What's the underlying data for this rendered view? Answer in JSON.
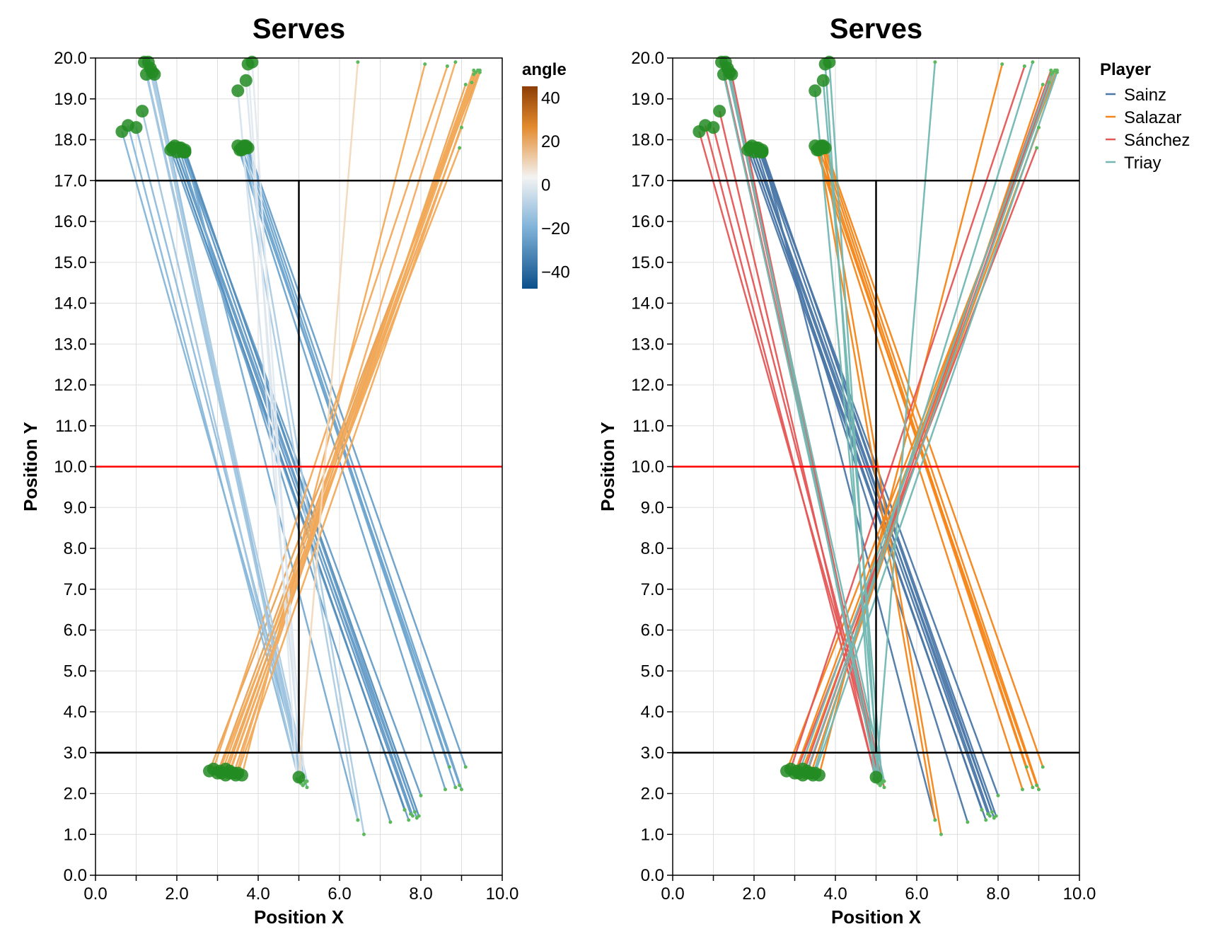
{
  "chart_data": [
    {
      "type": "line",
      "title": "Serves",
      "xlabel": "Position X",
      "ylabel": "Position Y",
      "xlim": [
        0,
        10
      ],
      "ylim": [
        0,
        20
      ],
      "x_ticks": [
        "0.0",
        "2.0",
        "4.0",
        "6.0",
        "8.0",
        "10.0"
      ],
      "y_ticks": [
        "0.0",
        "1.0",
        "2.0",
        "3.0",
        "4.0",
        "5.0",
        "6.0",
        "7.0",
        "8.0",
        "9.0",
        "10.0",
        "11.0",
        "12.0",
        "13.0",
        "14.0",
        "15.0",
        "16.0",
        "17.0",
        "18.0",
        "19.0",
        "20.0"
      ],
      "color_encoding": "angle",
      "color_legend": {
        "title": "angle",
        "ticks": [
          "40",
          "20",
          "0",
          "−20",
          "−40"
        ],
        "range": [
          -48,
          45
        ],
        "colors": {
          "low": "#0b4f8a",
          "mid": "#f3f3f3",
          "high": "#8c3e05"
        }
      },
      "court_lines": {
        "service_lines_y": [
          3,
          17
        ],
        "center_line": {
          "x": 5,
          "y_from": 3,
          "y_to": 17
        },
        "net_y": 10,
        "line_color": "#000000",
        "net_color": "#ff0000"
      }
    },
    {
      "type": "line",
      "title": "Serves",
      "xlabel": "Position X",
      "ylabel": "Position Y",
      "xlim": [
        0,
        10
      ],
      "ylim": [
        0,
        20
      ],
      "x_ticks": [
        "0.0",
        "2.0",
        "4.0",
        "6.0",
        "8.0",
        "10.0"
      ],
      "y_ticks": [
        "0.0",
        "1.0",
        "2.0",
        "3.0",
        "4.0",
        "5.0",
        "6.0",
        "7.0",
        "8.0",
        "9.0",
        "10.0",
        "11.0",
        "12.0",
        "13.0",
        "14.0",
        "15.0",
        "16.0",
        "17.0",
        "18.0",
        "19.0",
        "20.0"
      ],
      "color_encoding": "Player",
      "legend": {
        "title": "Player",
        "entries": [
          {
            "name": "Sainz",
            "color": "#4c78a8"
          },
          {
            "name": "Salazar",
            "color": "#f58518"
          },
          {
            "name": "Sánchez",
            "color": "#e45756"
          },
          {
            "name": "Triay",
            "color": "#72b7b2"
          }
        ]
      },
      "court_lines": {
        "service_lines_y": [
          3,
          17
        ],
        "center_line": {
          "x": 5,
          "y_from": 3,
          "y_to": 17
        },
        "net_y": 10,
        "line_color": "#000000",
        "net_color": "#ff0000"
      }
    }
  ],
  "point_colors": {
    "start": "#228b22",
    "end": "#5cb85c"
  },
  "serves": [
    {
      "player": "Sainz",
      "angle": -28,
      "from": [
        1.9,
        17.8
      ],
      "to": [
        7.6,
        1.6
      ]
    },
    {
      "player": "Sainz",
      "angle": -27,
      "from": [
        2.0,
        17.7
      ],
      "to": [
        7.75,
        1.5
      ]
    },
    {
      "player": "Sainz",
      "angle": -27,
      "from": [
        2.1,
        17.8
      ],
      "to": [
        7.8,
        1.45
      ]
    },
    {
      "player": "Sainz",
      "angle": -26,
      "from": [
        2.2,
        17.75
      ],
      "to": [
        7.9,
        1.4
      ]
    },
    {
      "player": "Sainz",
      "angle": -26,
      "from": [
        1.95,
        17.85
      ],
      "to": [
        7.85,
        1.55
      ]
    },
    {
      "player": "Sainz",
      "angle": -26,
      "from": [
        2.15,
        17.7
      ],
      "to": [
        8.0,
        1.95
      ]
    },
    {
      "player": "Sainz",
      "angle": -25,
      "from": [
        2.05,
        17.8
      ],
      "to": [
        7.25,
        1.3
      ]
    },
    {
      "player": "Sainz",
      "angle": -25,
      "from": [
        1.85,
        17.75
      ],
      "to": [
        7.7,
        1.35
      ]
    },
    {
      "player": "Sainz",
      "angle": -22,
      "from": [
        2.2,
        17.7
      ],
      "to": [
        6.45,
        1.35
      ]
    },
    {
      "player": "Sainz",
      "angle": -30,
      "from": [
        1.9,
        17.8
      ],
      "to": [
        7.6,
        1.6
      ]
    },
    {
      "player": "Sainz",
      "angle": -30,
      "from": [
        2.2,
        17.7
      ],
      "to": [
        7.95,
        1.45
      ]
    },
    {
      "player": "Salazar",
      "angle": -24,
      "from": [
        3.5,
        17.85
      ],
      "to": [
        8.6,
        2.1
      ]
    },
    {
      "player": "Salazar",
      "angle": -24,
      "from": [
        3.6,
        17.8
      ],
      "to": [
        8.85,
        2.15
      ]
    },
    {
      "player": "Salazar",
      "angle": -24,
      "from": [
        3.7,
        17.85
      ],
      "to": [
        9.0,
        2.1
      ]
    },
    {
      "player": "Salazar",
      "angle": -25,
      "from": [
        3.75,
        17.8
      ],
      "to": [
        9.1,
        2.65
      ]
    },
    {
      "player": "Salazar",
      "angle": -24,
      "from": [
        3.55,
        17.75
      ],
      "to": [
        8.95,
        2.2
      ]
    },
    {
      "player": "Salazar",
      "angle": -24,
      "from": [
        3.65,
        17.85
      ],
      "to": [
        8.7,
        2.65
      ]
    },
    {
      "player": "Salazar",
      "angle": -12,
      "from": [
        3.7,
        17.8
      ],
      "to": [
        6.6,
        1.0
      ]
    },
    {
      "player": "Salazar",
      "angle": -12,
      "from": [
        3.6,
        17.75
      ],
      "to": [
        6.45,
        1.35
      ]
    },
    {
      "player": "Salazar",
      "angle": 24,
      "from": [
        2.8,
        2.55
      ],
      "to": [
        9.45,
        19.7
      ]
    },
    {
      "player": "Salazar",
      "angle": 24,
      "from": [
        3.0,
        2.5
      ],
      "to": [
        9.35,
        19.65
      ]
    },
    {
      "player": "Salazar",
      "angle": 23,
      "from": [
        3.2,
        2.6
      ],
      "to": [
        9.0,
        18.3
      ]
    },
    {
      "player": "Salazar",
      "angle": 23,
      "from": [
        3.4,
        2.5
      ],
      "to": [
        9.1,
        19.35
      ]
    },
    {
      "player": "Salazar",
      "angle": 22,
      "from": [
        3.6,
        2.45
      ],
      "to": [
        8.1,
        19.85
      ]
    },
    {
      "player": "Sánchez",
      "angle": -15,
      "from": [
        1.35,
        19.75
      ],
      "to": [
        5.05,
        2.4
      ]
    },
    {
      "player": "Sánchez",
      "angle": -15,
      "from": [
        1.2,
        19.9
      ],
      "to": [
        5.15,
        2.3
      ]
    },
    {
      "player": "Sánchez",
      "angle": -16,
      "from": [
        1.45,
        19.6
      ],
      "to": [
        5.1,
        2.2
      ]
    },
    {
      "player": "Sánchez",
      "angle": -18,
      "from": [
        0.8,
        18.35
      ],
      "to": [
        5.0,
        2.35
      ]
    },
    {
      "player": "Sánchez",
      "angle": -19,
      "from": [
        0.65,
        18.2
      ],
      "to": [
        5.2,
        2.15
      ]
    },
    {
      "player": "Sánchez",
      "angle": -17,
      "from": [
        1.0,
        18.3
      ],
      "to": [
        5.1,
        2.45
      ]
    },
    {
      "player": "Sánchez",
      "angle": 22,
      "from": [
        3.05,
        2.55
      ],
      "to": [
        8.95,
        17.8
      ]
    },
    {
      "player": "Sánchez",
      "angle": 23,
      "from": [
        3.2,
        2.45
      ],
      "to": [
        9.3,
        19.7
      ]
    },
    {
      "player": "Sánchez",
      "angle": 22,
      "from": [
        2.9,
        2.6
      ],
      "to": [
        8.65,
        19.8
      ]
    },
    {
      "player": "Sánchez",
      "angle": 22,
      "from": [
        3.3,
        2.5
      ],
      "to": [
        9.25,
        19.4
      ]
    },
    {
      "player": "Sánchez",
      "angle": -14,
      "from": [
        1.15,
        18.7
      ],
      "to": [
        5.0,
        2.3
      ]
    },
    {
      "player": "Triay",
      "angle": -12,
      "from": [
        1.4,
        19.65
      ],
      "to": [
        5.05,
        2.25
      ]
    },
    {
      "player": "Triay",
      "angle": -12,
      "from": [
        1.3,
        19.9
      ],
      "to": [
        5.2,
        2.3
      ]
    },
    {
      "player": "Triay",
      "angle": -14,
      "from": [
        1.25,
        19.6
      ],
      "to": [
        5.1,
        2.4
      ]
    },
    {
      "player": "Triay",
      "angle": -3,
      "from": [
        3.75,
        19.85
      ],
      "to": [
        4.95,
        2.35
      ]
    },
    {
      "player": "Triay",
      "angle": -3,
      "from": [
        3.85,
        19.9
      ],
      "to": [
        5.05,
        2.3
      ]
    },
    {
      "player": "Triay",
      "angle": -5,
      "from": [
        3.5,
        19.2
      ],
      "to": [
        5.1,
        2.2
      ]
    },
    {
      "player": "Triay",
      "angle": -4,
      "from": [
        3.7,
        19.45
      ],
      "to": [
        5.15,
        2.25
      ]
    },
    {
      "player": "Triay",
      "angle": 22,
      "from": [
        3.1,
        2.5
      ],
      "to": [
        9.3,
        19.6
      ]
    },
    {
      "player": "Triay",
      "angle": 22,
      "from": [
        3.3,
        2.55
      ],
      "to": [
        9.4,
        19.7
      ]
    },
    {
      "player": "Triay",
      "angle": 22,
      "from": [
        3.5,
        2.5
      ],
      "to": [
        9.45,
        19.65
      ]
    },
    {
      "player": "Triay",
      "angle": 21,
      "from": [
        3.45,
        2.45
      ],
      "to": [
        8.85,
        19.9
      ]
    },
    {
      "player": "Triay",
      "angle": 8,
      "from": [
        5.0,
        2.4
      ],
      "to": [
        6.45,
        19.9
      ]
    }
  ]
}
